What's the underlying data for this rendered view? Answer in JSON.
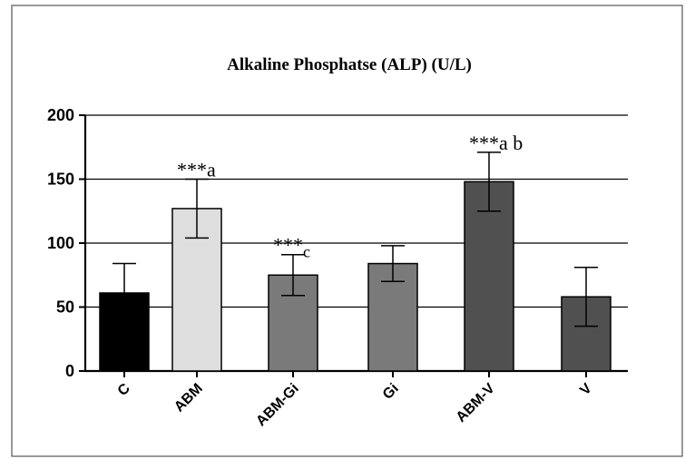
{
  "chart_data": {
    "type": "bar",
    "title": "Alkaline Phosphatse (ALP) (U/L)",
    "xlabel": "",
    "ylabel": "",
    "ylim": [
      0,
      200
    ],
    "yticks": [
      0,
      50,
      100,
      150,
      200
    ],
    "grid": true,
    "categories": [
      "C",
      "ABM",
      "ABM-Gi",
      "Gi",
      "ABM-V",
      "V"
    ],
    "values": [
      61,
      127,
      75,
      84,
      148,
      58
    ],
    "errors": [
      23,
      23,
      16,
      14,
      23,
      23
    ],
    "colors": [
      "#000000",
      "#dedede",
      "#7a7a7a",
      "#7a7a7a",
      "#505050",
      "#505050"
    ],
    "annotations": [
      {
        "category": "ABM",
        "stars": "***",
        "letters": "a"
      },
      {
        "category": "ABM-Gi",
        "stars": "***",
        "letters": "c"
      },
      {
        "category": "ABM-V",
        "stars": "***",
        "letters": "a b"
      }
    ]
  }
}
